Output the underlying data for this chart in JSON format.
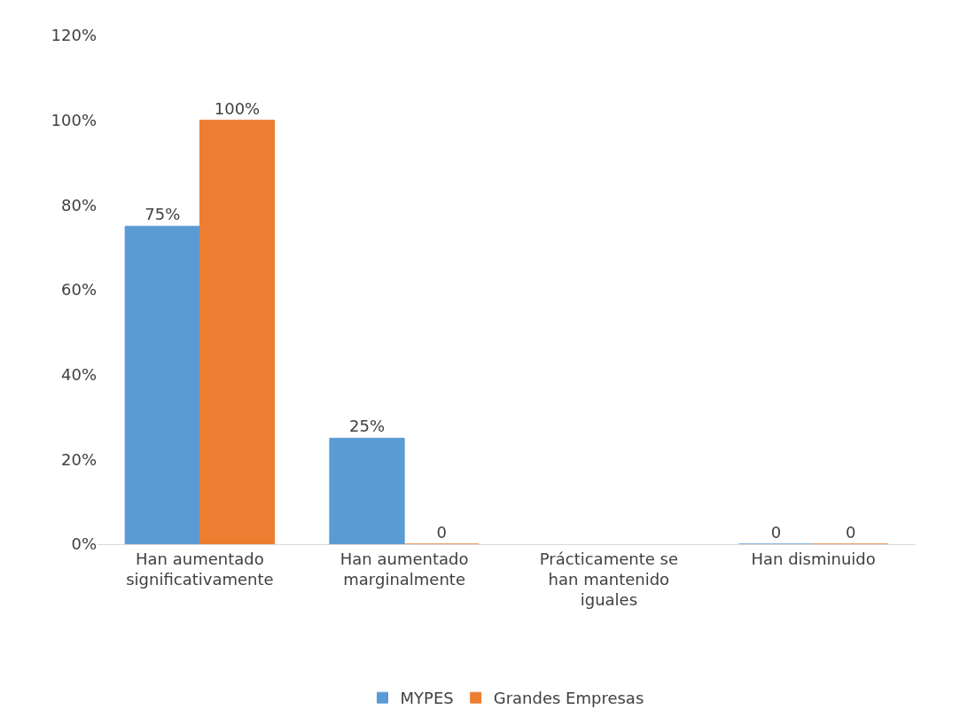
{
  "chart_data": {
    "type": "bar",
    "categories": [
      "Han aumentado significativamente",
      "Han aumentado marginalmente",
      "Prácticamente se han mantenido iguales",
      "Han disminuido"
    ],
    "series": [
      {
        "name": "MYPES",
        "color": "#5b9bd5",
        "values": [
          75,
          25,
          null,
          0
        ],
        "value_labels": [
          "75%",
          "25%",
          null,
          "0"
        ]
      },
      {
        "name": "Grandes Empresas",
        "color": "#ed7d31",
        "values": [
          100,
          0,
          null,
          0
        ],
        "value_labels": [
          "100%",
          "0",
          null,
          "0"
        ]
      }
    ],
    "ylim": [
      0,
      120
    ],
    "yticks": [
      {
        "value": 0,
        "label": "0%"
      },
      {
        "value": 20,
        "label": "20%"
      },
      {
        "value": 40,
        "label": "40%"
      },
      {
        "value": 60,
        "label": "60%"
      },
      {
        "value": 80,
        "label": "80%"
      },
      {
        "value": 100,
        "label": "100%"
      },
      {
        "value": 120,
        "label": "120%"
      }
    ],
    "grid": false,
    "legend": "bottom"
  }
}
